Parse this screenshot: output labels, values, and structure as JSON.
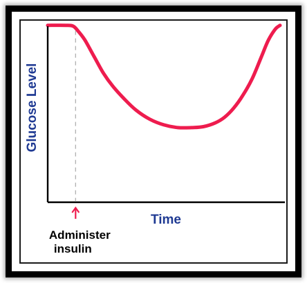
{
  "chart_data": {
    "type": "line",
    "title": "",
    "xlabel": "Time",
    "ylabel": "Glucose Level",
    "xlim": [
      0,
      100
    ],
    "ylim": [
      0,
      100
    ],
    "grid": false,
    "series": [
      {
        "name": "",
        "color": "#ee1c4e",
        "x": [
          0,
          8,
          11,
          13,
          16,
          20,
          24,
          28,
          33,
          38,
          44,
          50,
          56,
          62,
          67,
          72,
          76,
          80,
          84,
          88,
          92,
          95,
          98,
          100
        ],
        "y": [
          96,
          96,
          95.5,
          93,
          88,
          79,
          70,
          63,
          56,
          50,
          45,
          42,
          40.5,
          40.5,
          41,
          43,
          46,
          51,
          58,
          67,
          79,
          88,
          94,
          96
        ]
      }
    ],
    "annotation": {
      "x": 12,
      "lines": [
        "Administer",
        "insulin"
      ],
      "arrow_color": "#ee1c4e",
      "dash_color": "#b0b0b0"
    },
    "colors": {
      "axis": "#000000",
      "label_text": "#1f3a93",
      "annotation_text": "#000000"
    }
  }
}
